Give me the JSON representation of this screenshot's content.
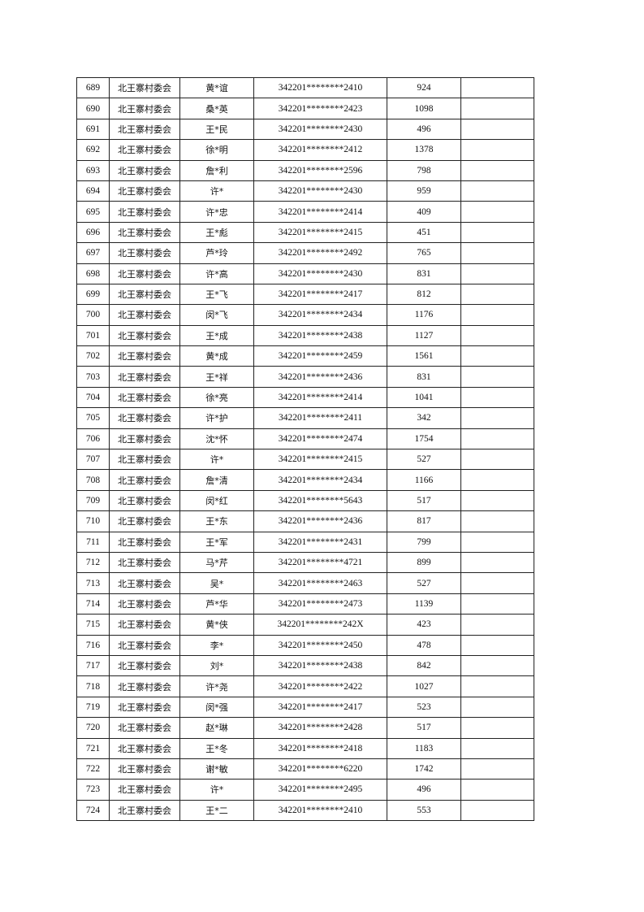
{
  "table": {
    "rows": [
      [
        "689",
        "北王寨村委会",
        "黄*谊",
        "342201********2410",
        "924",
        ""
      ],
      [
        "690",
        "北王寨村委会",
        "桑*英",
        "342201********2423",
        "1098",
        ""
      ],
      [
        "691",
        "北王寨村委会",
        "王*民",
        "342201********2430",
        "496",
        ""
      ],
      [
        "692",
        "北王寨村委会",
        "徐*明",
        "342201********2412",
        "1378",
        ""
      ],
      [
        "693",
        "北王寨村委会",
        "詹*利",
        "342201********2596",
        "798",
        ""
      ],
      [
        "694",
        "北王寨村委会",
        "许*",
        "342201********2430",
        "959",
        ""
      ],
      [
        "695",
        "北王寨村委会",
        "许*忠",
        "342201********2414",
        "409",
        ""
      ],
      [
        "696",
        "北王寨村委会",
        "王*彪",
        "342201********2415",
        "451",
        ""
      ],
      [
        "697",
        "北王寨村委会",
        "芦*玲",
        "342201********2492",
        "765",
        ""
      ],
      [
        "698",
        "北王寨村委会",
        "许*高",
        "342201********2430",
        "831",
        ""
      ],
      [
        "699",
        "北王寨村委会",
        "王*飞",
        "342201********2417",
        "812",
        ""
      ],
      [
        "700",
        "北王寨村委会",
        "闵*飞",
        "342201********2434",
        "1176",
        ""
      ],
      [
        "701",
        "北王寨村委会",
        "王*成",
        "342201********2438",
        "1127",
        ""
      ],
      [
        "702",
        "北王寨村委会",
        "黄*成",
        "342201********2459",
        "1561",
        ""
      ],
      [
        "703",
        "北王寨村委会",
        "王*祥",
        "342201********2436",
        "831",
        ""
      ],
      [
        "704",
        "北王寨村委会",
        "徐*亮",
        "342201********2414",
        "1041",
        ""
      ],
      [
        "705",
        "北王寨村委会",
        "许*护",
        "342201********2411",
        "342",
        ""
      ],
      [
        "706",
        "北王寨村委会",
        "沈*怀",
        "342201********2474",
        "1754",
        ""
      ],
      [
        "707",
        "北王寨村委会",
        "许*",
        "342201********2415",
        "527",
        ""
      ],
      [
        "708",
        "北王寨村委会",
        "詹*清",
        "342201********2434",
        "1166",
        ""
      ],
      [
        "709",
        "北王寨村委会",
        "闵*红",
        "342201********5643",
        "517",
        ""
      ],
      [
        "710",
        "北王寨村委会",
        "王*东",
        "342201********2436",
        "817",
        ""
      ],
      [
        "711",
        "北王寨村委会",
        "王*军",
        "342201********2431",
        "799",
        ""
      ],
      [
        "712",
        "北王寨村委会",
        "马*芹",
        "342201********4721",
        "899",
        ""
      ],
      [
        "713",
        "北王寨村委会",
        "吴*",
        "342201********2463",
        "527",
        ""
      ],
      [
        "714",
        "北王寨村委会",
        "芦*华",
        "342201********2473",
        "1139",
        ""
      ],
      [
        "715",
        "北王寨村委会",
        "黄*侠",
        "342201********242X",
        "423",
        ""
      ],
      [
        "716",
        "北王寨村委会",
        "李*",
        "342201********2450",
        "478",
        ""
      ],
      [
        "717",
        "北王寨村委会",
        "刘*",
        "342201********2438",
        "842",
        ""
      ],
      [
        "718",
        "北王寨村委会",
        "许*尧",
        "342201********2422",
        "1027",
        ""
      ],
      [
        "719",
        "北王寨村委会",
        "闵*强",
        "342201********2417",
        "523",
        ""
      ],
      [
        "720",
        "北王寨村委会",
        "赵*琳",
        "342201********2428",
        "517",
        ""
      ],
      [
        "721",
        "北王寨村委会",
        "王*冬",
        "342201********2418",
        "1183",
        ""
      ],
      [
        "722",
        "北王寨村委会",
        "谢*敏",
        "342201********6220",
        "1742",
        ""
      ],
      [
        "723",
        "北王寨村委会",
        "许*",
        "342201********2495",
        "496",
        ""
      ],
      [
        "724",
        "北王寨村委会",
        "王*二",
        "342201********2410",
        "553",
        ""
      ]
    ]
  }
}
